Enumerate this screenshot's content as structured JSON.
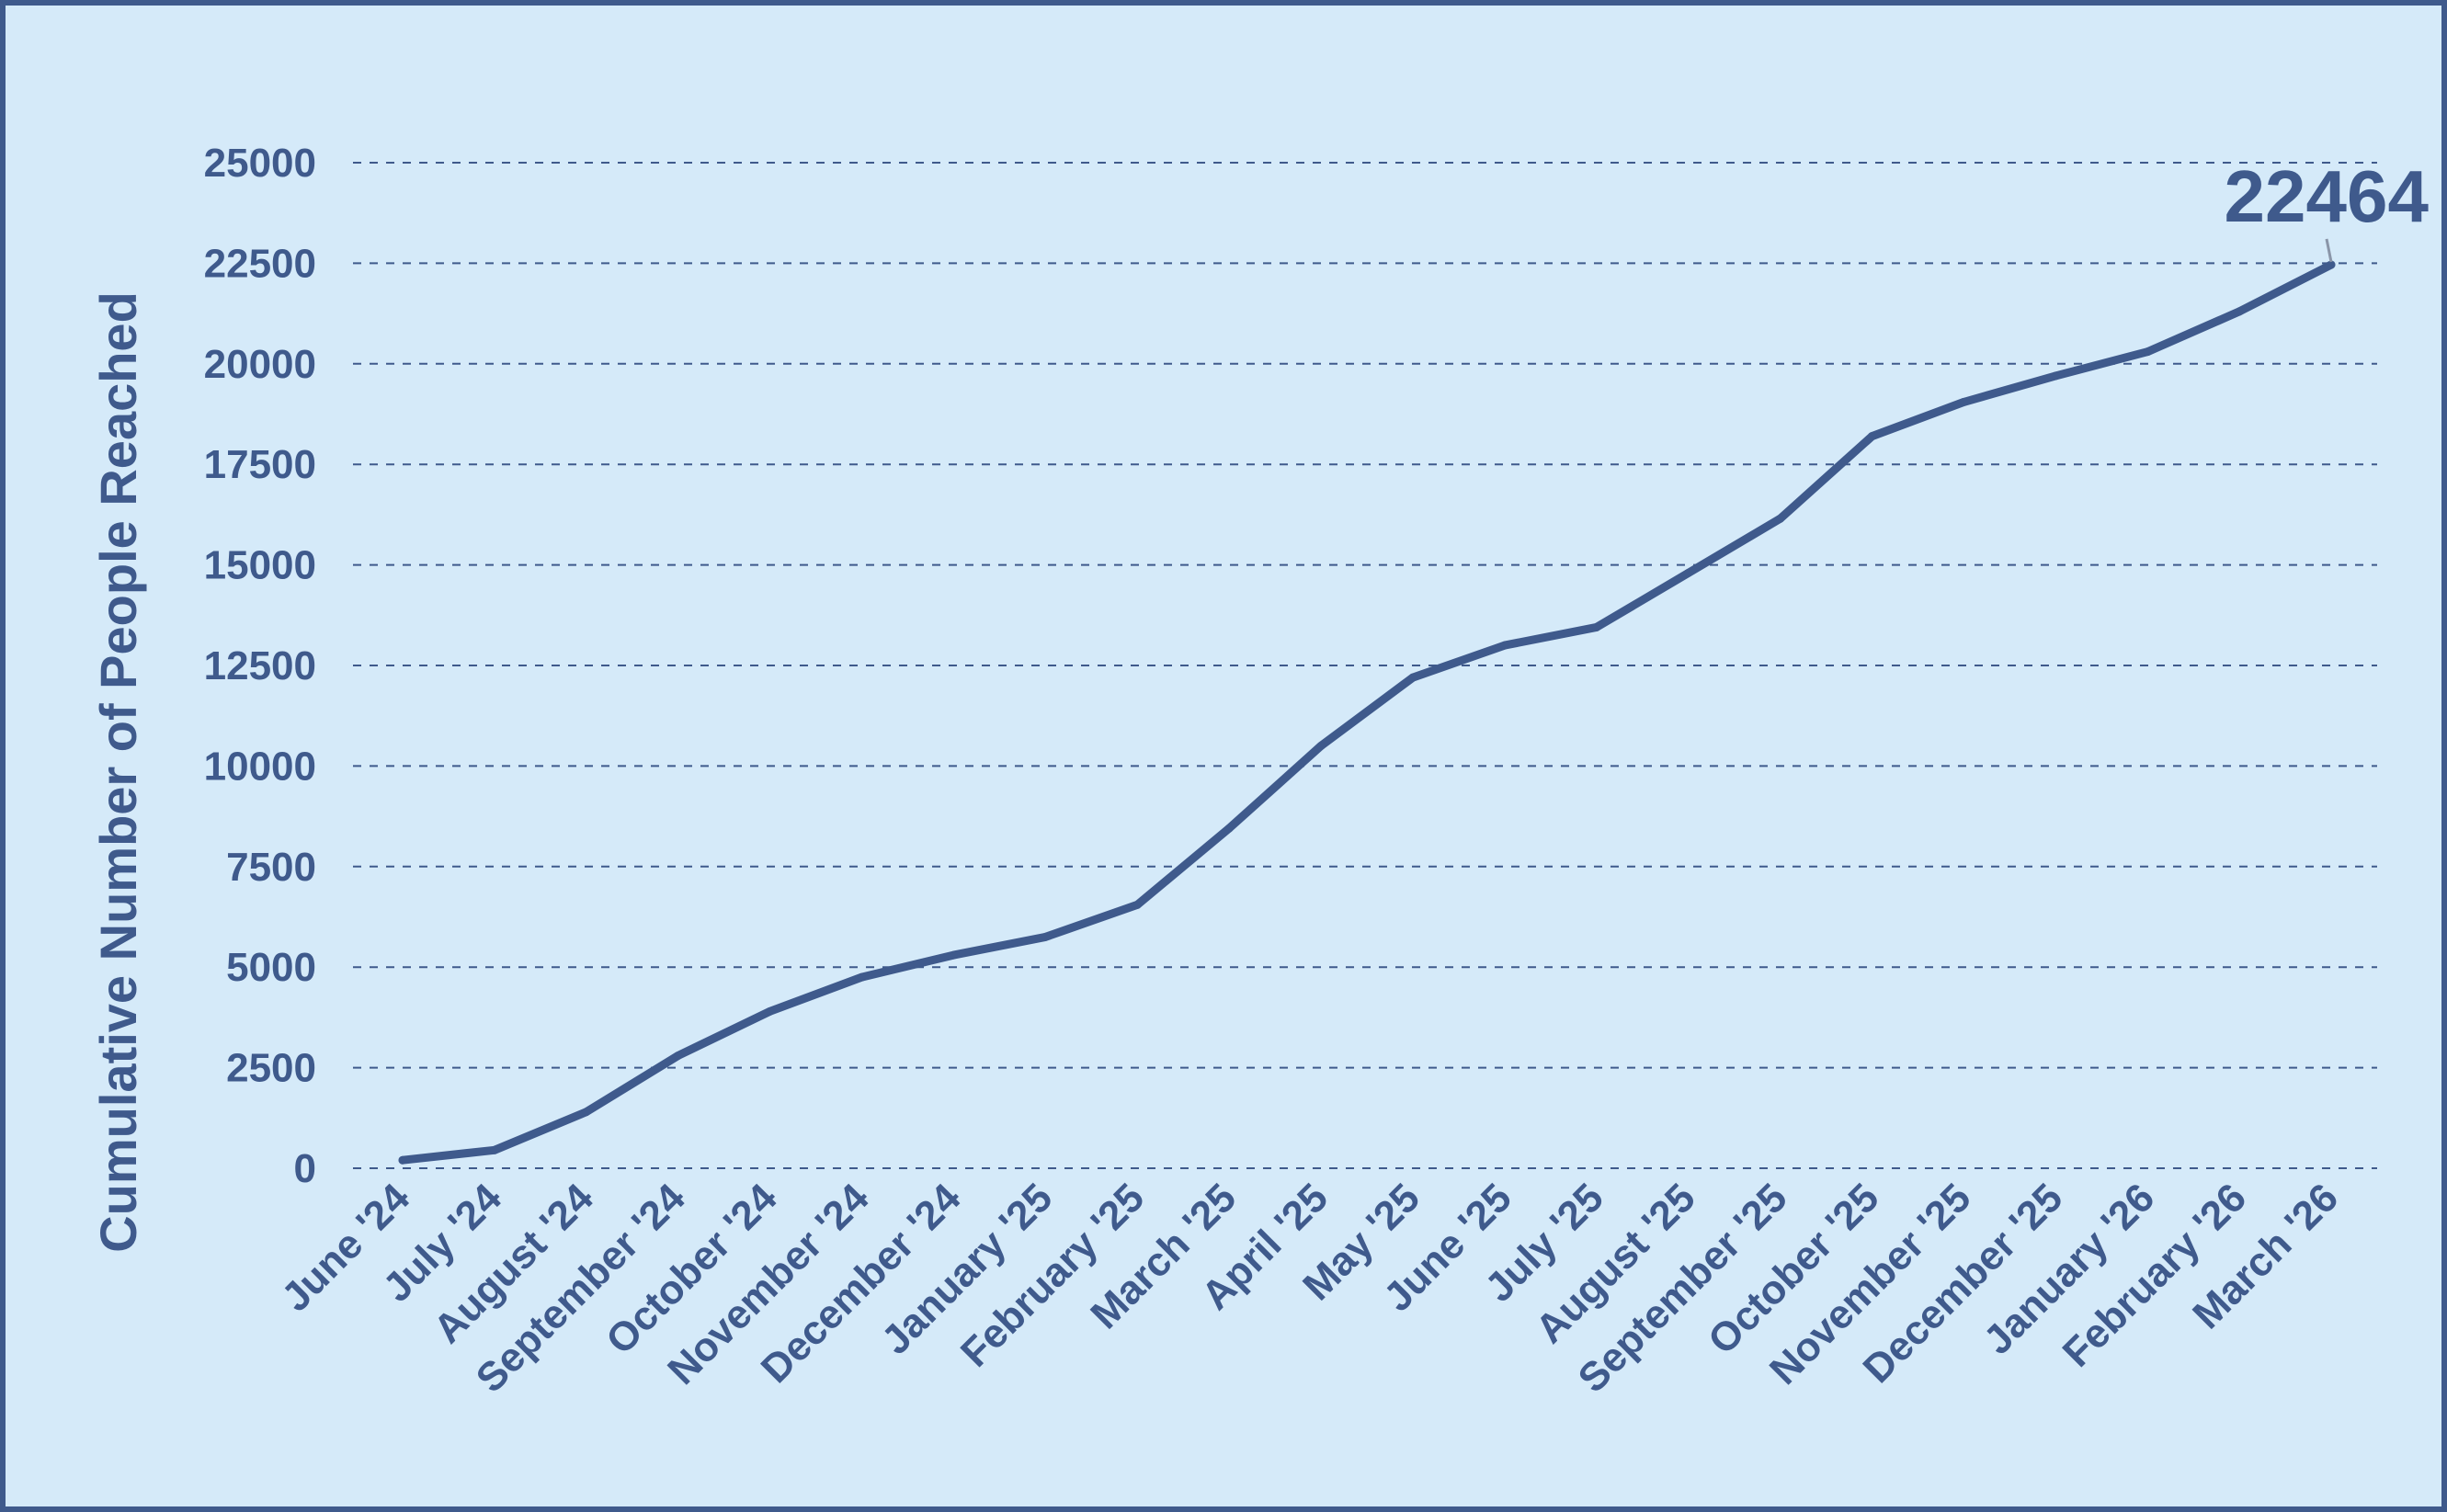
{
  "chart_data": {
    "type": "line",
    "title": "",
    "xlabel": "",
    "ylabel": "Cumulative Number of People Reached",
    "categories": [
      "June '24",
      "July '24",
      "August '24",
      "September '24",
      "October '24",
      "November '24",
      "December '24",
      "January '25",
      "February '25",
      "March '25",
      "April '25",
      "May '25",
      "June '25",
      "July '25",
      "August '25",
      "September '25",
      "October '25",
      "November '25",
      "December '25",
      "January '26",
      "February '26",
      "March '26"
    ],
    "series": [
      {
        "values": [
          200,
          450,
          1400,
          2800,
          3900,
          4750,
          5300,
          5750,
          6550,
          8450,
          10500,
          12200,
          13000,
          13450,
          14800,
          16150,
          18200,
          19050,
          19700,
          20300,
          21300,
          22464
        ]
      }
    ],
    "ylim": [
      0,
      25000
    ],
    "yticks": [
      0,
      2500,
      5000,
      7500,
      10000,
      12500,
      15000,
      17500,
      20000,
      22500,
      25000
    ],
    "grid": "horizontal dashed",
    "annotation": {
      "text": "22464",
      "category": "March '26",
      "value": 22464
    },
    "colors": {
      "line": "#3f5a8c",
      "background": "#d5eaf9",
      "grid": "#3f5a8c",
      "text": "#3f5a8c"
    }
  }
}
